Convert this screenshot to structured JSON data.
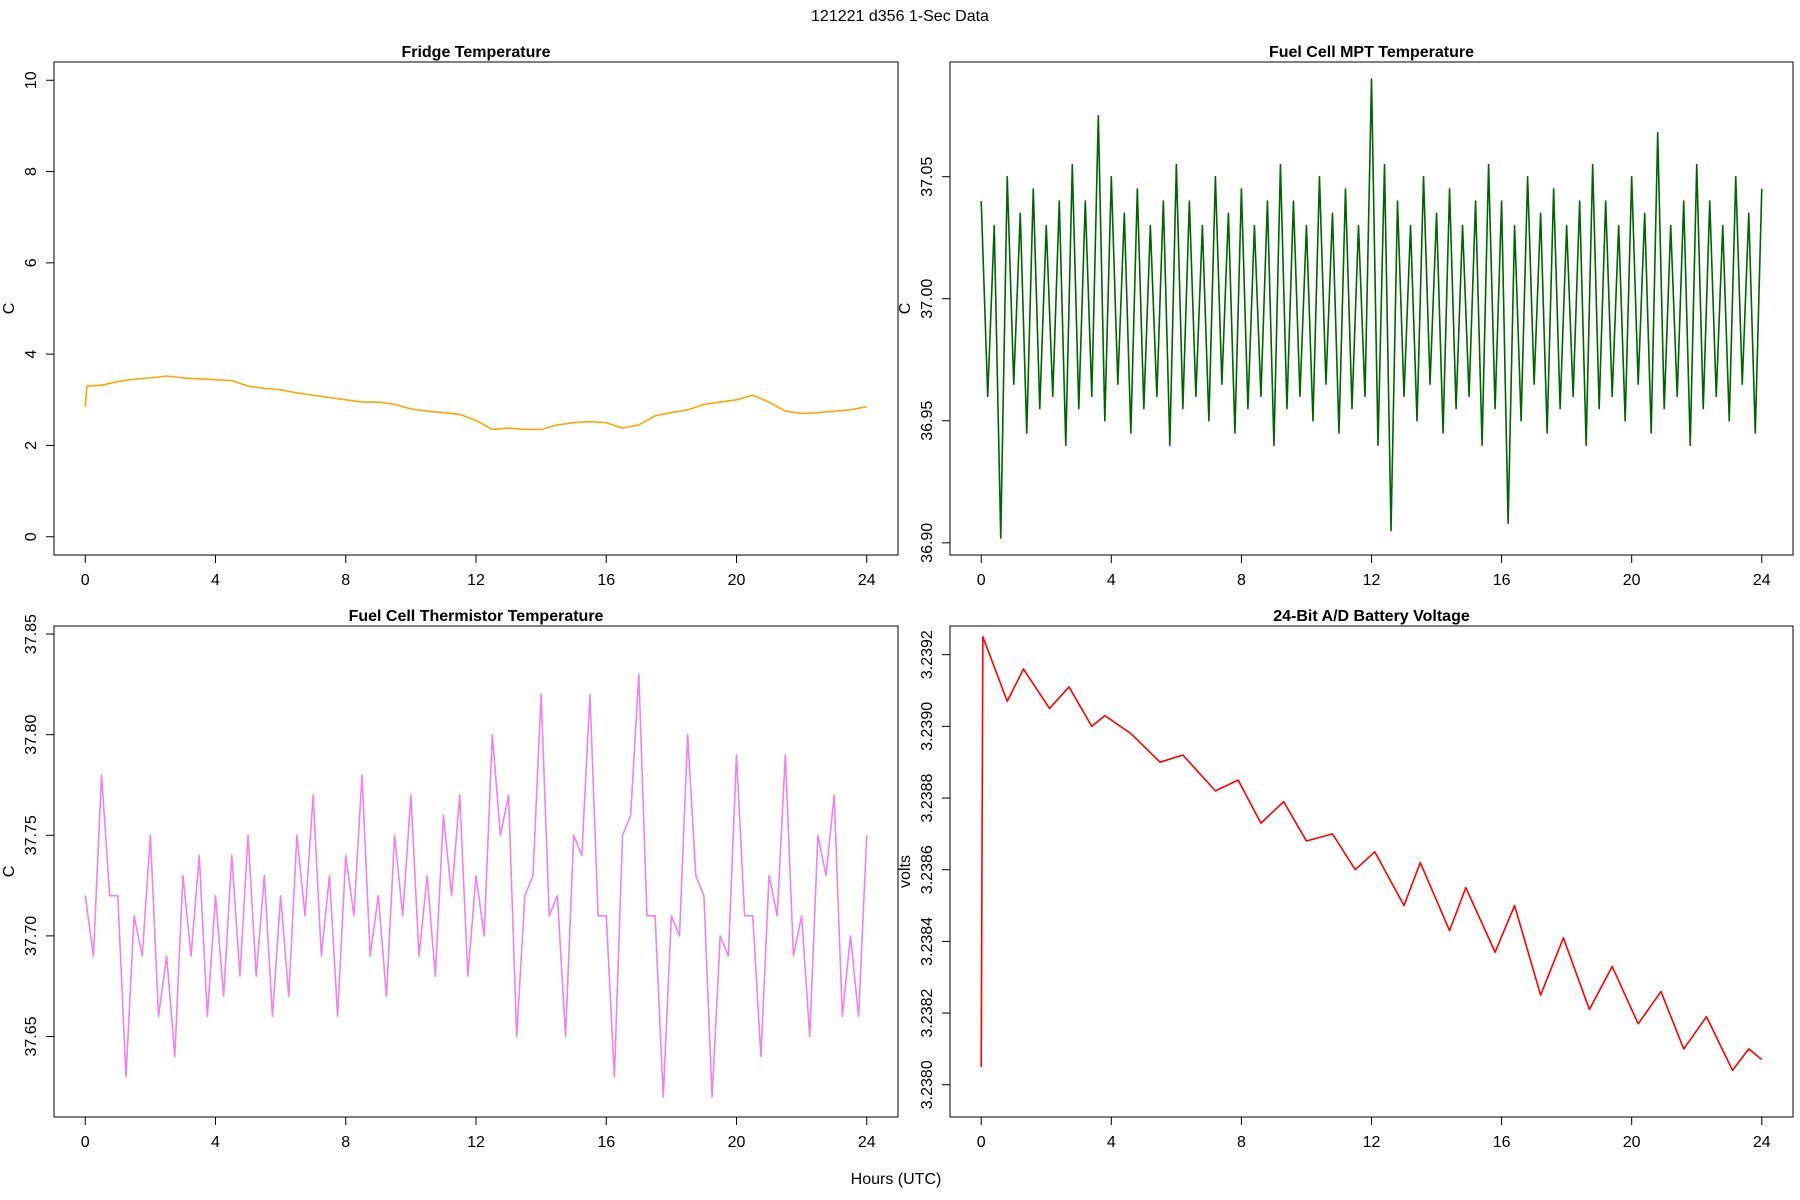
{
  "title": "121221   d356   1-Sec Data",
  "x_label": "Hours (UTC)",
  "chart_data": [
    {
      "type": "line",
      "title": "Fridge Temperature",
      "y_label": "C",
      "color": "#ffa500",
      "xlim": [
        -0.96,
        24.96
      ],
      "xticks": [
        0,
        4,
        8,
        12,
        16,
        20,
        24
      ],
      "ylim": [
        -0.4,
        10.4
      ],
      "yticks": [
        0,
        2,
        4,
        6,
        8,
        10
      ],
      "x": [
        0,
        0.05,
        0.5,
        1,
        1.5,
        2,
        2.5,
        3,
        3.5,
        4,
        4.5,
        5,
        5.5,
        6,
        6.5,
        7,
        7.5,
        8,
        8.5,
        9,
        9.5,
        10,
        10.5,
        11,
        11.5,
        12,
        12.5,
        13,
        13.5,
        14,
        14.5,
        15,
        15.5,
        16,
        16.5,
        17,
        17.5,
        18,
        18.5,
        19,
        19.5,
        20,
        20.5,
        21,
        21.5,
        22,
        22.5,
        23,
        23.5,
        24
      ],
      "values": [
        2.85,
        3.3,
        3.32,
        3.4,
        3.45,
        3.48,
        3.52,
        3.48,
        3.46,
        3.44,
        3.42,
        3.3,
        3.25,
        3.22,
        3.15,
        3.1,
        3.05,
        3.0,
        2.95,
        2.95,
        2.9,
        2.8,
        2.75,
        2.72,
        2.68,
        2.55,
        2.35,
        2.38,
        2.35,
        2.35,
        2.45,
        2.5,
        2.52,
        2.5,
        2.38,
        2.45,
        2.65,
        2.72,
        2.78,
        2.9,
        2.95,
        3.0,
        3.1,
        2.95,
        2.75,
        2.7,
        2.72,
        2.75,
        2.78,
        2.85
      ]
    },
    {
      "type": "line",
      "title": "Fuel Cell MPT Temperature",
      "y_label": "C",
      "color": "#006400",
      "xlim": [
        -0.96,
        24.96
      ],
      "xticks": [
        0,
        4,
        8,
        12,
        16,
        20,
        24
      ],
      "ylim": [
        36.895,
        37.097
      ],
      "yticks": [
        {
          "value": 36.9,
          "label": "36.90"
        },
        36.95,
        {
          "value": 37,
          "label": "37.00"
        },
        37.05
      ],
      "x": [
        0,
        0.2,
        0.4,
        0.6,
        0.8,
        1,
        1.2,
        1.4,
        1.6,
        1.8,
        2,
        2.2,
        2.4,
        2.6,
        2.8,
        3,
        3.2,
        3.4,
        3.6,
        3.8,
        4,
        4.2,
        4.4,
        4.6,
        4.8,
        5,
        5.2,
        5.4,
        5.6,
        5.8,
        6,
        6.2,
        6.4,
        6.6,
        6.8,
        7,
        7.2,
        7.4,
        7.6,
        7.8,
        8,
        8.2,
        8.4,
        8.6,
        8.8,
        9,
        9.2,
        9.4,
        9.6,
        9.8,
        10,
        10.2,
        10.4,
        10.6,
        10.8,
        11,
        11.2,
        11.4,
        11.6,
        11.8,
        12,
        12.2,
        12.4,
        12.6,
        12.8,
        13,
        13.2,
        13.4,
        13.6,
        13.8,
        14,
        14.2,
        14.4,
        14.6,
        14.8,
        15,
        15.2,
        15.4,
        15.6,
        15.8,
        16,
        16.2,
        16.4,
        16.6,
        16.8,
        17,
        17.2,
        17.4,
        17.6,
        17.8,
        18,
        18.2,
        18.4,
        18.6,
        18.8,
        19,
        19.2,
        19.4,
        19.6,
        19.8,
        20,
        20.2,
        20.4,
        20.6,
        20.8,
        21,
        21.2,
        21.4,
        21.6,
        21.8,
        22,
        22.2,
        22.4,
        22.6,
        22.8,
        23,
        23.2,
        23.4,
        23.6,
        23.8,
        24
      ],
      "values": [
        37.04,
        36.96,
        37.03,
        36.902,
        37.05,
        36.965,
        37.035,
        36.945,
        37.045,
        36.955,
        37.03,
        36.96,
        37.04,
        36.94,
        37.055,
        36.955,
        37.04,
        36.96,
        37.075,
        36.95,
        37.05,
        36.965,
        37.035,
        36.945,
        37.045,
        36.955,
        37.03,
        36.96,
        37.04,
        36.94,
        37.055,
        36.955,
        37.04,
        36.96,
        37.03,
        36.95,
        37.05,
        36.965,
        37.035,
        36.945,
        37.045,
        36.955,
        37.03,
        36.96,
        37.04,
        36.94,
        37.055,
        36.955,
        37.04,
        36.96,
        37.03,
        36.95,
        37.05,
        36.965,
        37.035,
        36.945,
        37.045,
        36.955,
        37.03,
        36.96,
        37.09,
        36.94,
        37.055,
        36.905,
        37.04,
        36.96,
        37.03,
        36.95,
        37.05,
        36.965,
        37.035,
        36.945,
        37.045,
        36.955,
        37.03,
        36.96,
        37.04,
        36.94,
        37.055,
        36.955,
        37.04,
        36.908,
        37.03,
        36.95,
        37.05,
        36.965,
        37.035,
        36.945,
        37.045,
        36.955,
        37.03,
        36.96,
        37.04,
        36.94,
        37.055,
        36.955,
        37.04,
        36.96,
        37.03,
        36.95,
        37.05,
        36.965,
        37.035,
        36.945,
        37.068,
        36.955,
        37.03,
        36.96,
        37.04,
        36.94,
        37.055,
        36.955,
        37.04,
        36.96,
        37.03,
        36.95,
        37.05,
        36.965,
        37.035,
        36.945,
        37.045
      ]
    },
    {
      "type": "line",
      "title": "Fuel Cell Thermistor Temperature",
      "y_label": "C",
      "color": "#ee82ee",
      "xlim": [
        -0.96,
        24.96
      ],
      "xticks": [
        0,
        4,
        8,
        12,
        16,
        20,
        24
      ],
      "ylim": [
        37.61,
        37.854
      ],
      "yticks": [
        37.65,
        {
          "value": 37.7,
          "label": "37.70"
        },
        37.75,
        {
          "value": 37.8,
          "label": "37.80"
        },
        37.85
      ],
      "x": [
        0,
        0.25,
        0.5,
        0.75,
        1,
        1.25,
        1.5,
        1.75,
        2,
        2.25,
        2.5,
        2.75,
        3,
        3.25,
        3.5,
        3.75,
        4,
        4.25,
        4.5,
        4.75,
        5,
        5.25,
        5.5,
        5.75,
        6,
        6.25,
        6.5,
        6.75,
        7,
        7.25,
        7.5,
        7.75,
        8,
        8.25,
        8.5,
        8.75,
        9,
        9.25,
        9.5,
        9.75,
        10,
        10.25,
        10.5,
        10.75,
        11,
        11.25,
        11.5,
        11.75,
        12,
        12.25,
        12.5,
        12.75,
        13,
        13.25,
        13.5,
        13.75,
        14,
        14.25,
        14.5,
        14.75,
        15,
        15.25,
        15.5,
        15.75,
        16,
        16.25,
        16.5,
        16.75,
        17,
        17.25,
        17.5,
        17.75,
        18,
        18.25,
        18.5,
        18.75,
        19,
        19.25,
        19.5,
        19.75,
        20,
        20.25,
        20.5,
        20.75,
        21,
        21.25,
        21.5,
        21.75,
        22,
        22.25,
        22.5,
        22.75,
        23,
        23.25,
        23.5,
        23.75,
        24
      ],
      "values": [
        37.72,
        37.69,
        37.78,
        37.72,
        37.72,
        37.63,
        37.71,
        37.69,
        37.75,
        37.66,
        37.69,
        37.64,
        37.73,
        37.69,
        37.74,
        37.66,
        37.72,
        37.67,
        37.74,
        37.68,
        37.75,
        37.68,
        37.73,
        37.66,
        37.72,
        37.67,
        37.75,
        37.71,
        37.77,
        37.69,
        37.73,
        37.66,
        37.74,
        37.71,
        37.78,
        37.69,
        37.72,
        37.67,
        37.75,
        37.71,
        37.77,
        37.69,
        37.73,
        37.68,
        37.76,
        37.72,
        37.77,
        37.68,
        37.73,
        37.7,
        37.8,
        37.75,
        37.77,
        37.65,
        37.72,
        37.73,
        37.82,
        37.71,
        37.72,
        37.65,
        37.75,
        37.74,
        37.82,
        37.71,
        37.71,
        37.63,
        37.75,
        37.76,
        37.83,
        37.71,
        37.71,
        37.62,
        37.71,
        37.7,
        37.8,
        37.73,
        37.72,
        37.62,
        37.7,
        37.69,
        37.79,
        37.71,
        37.71,
        37.64,
        37.73,
        37.71,
        37.79,
        37.69,
        37.71,
        37.65,
        37.75,
        37.73,
        37.77,
        37.66,
        37.7,
        37.66,
        37.75
      ]
    },
    {
      "type": "line",
      "title": "24-Bit A/D Battery Voltage",
      "y_label": "volts",
      "color": "#ff0000",
      "xlim": [
        -0.96,
        24.96
      ],
      "xticks": [
        0,
        4,
        8,
        12,
        16,
        20,
        24
      ],
      "ylim": [
        3.23791,
        3.23928
      ],
      "yticks": [
        {
          "value": 3.238,
          "label": "3.2380"
        },
        3.2382,
        3.2384,
        3.2386,
        3.2388,
        {
          "value": 3.239,
          "label": "3.2390"
        },
        3.2392
      ],
      "x": [
        0,
        0.05,
        0.8,
        1.3,
        2.1,
        2.7,
        3.4,
        3.8,
        4.6,
        5.5,
        6.2,
        7.2,
        7.9,
        8.6,
        9.3,
        10,
        10.8,
        11.5,
        12.1,
        13,
        13.5,
        14.4,
        14.9,
        15.8,
        16.4,
        17.2,
        17.9,
        18.7,
        19.4,
        20.2,
        20.9,
        21.6,
        22.3,
        23.1,
        23.6,
        24
      ],
      "values": [
        3.23805,
        3.23925,
        3.23907,
        3.23916,
        3.23905,
        3.23911,
        3.239,
        3.23903,
        3.23898,
        3.2389,
        3.23892,
        3.23882,
        3.23885,
        3.23873,
        3.23879,
        3.23868,
        3.2387,
        3.2386,
        3.23865,
        3.2385,
        3.23862,
        3.23843,
        3.23855,
        3.23837,
        3.2385,
        3.23825,
        3.23841,
        3.23821,
        3.23833,
        3.23817,
        3.23826,
        3.2381,
        3.23819,
        3.23804,
        3.2381,
        3.23807
      ]
    }
  ]
}
